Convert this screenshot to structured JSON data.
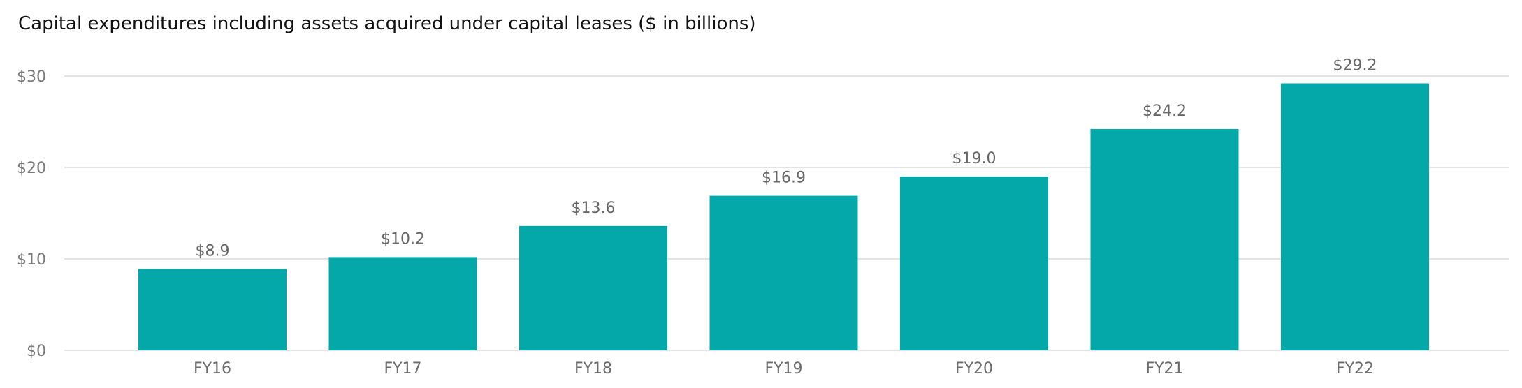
{
  "chart_data": {
    "type": "bar",
    "title": "Capital expenditures including assets acquired under capital leases ($ in billions)",
    "xlabel": "",
    "ylabel": "",
    "categories": [
      "FY16",
      "FY17",
      "FY18",
      "FY19",
      "FY20",
      "FY21",
      "FY22"
    ],
    "values": [
      8.9,
      10.2,
      13.6,
      16.9,
      19.0,
      24.2,
      29.2
    ],
    "data_labels": [
      "$8.9",
      "$10.2",
      "$13.6",
      "$16.9",
      "$19.0",
      "$24.2",
      "$29.2"
    ],
    "ylim": [
      0,
      30
    ],
    "yticks": [
      0,
      10,
      20,
      30
    ],
    "ytick_labels": [
      "$0",
      "$10",
      "$20",
      "$30"
    ],
    "grid": true,
    "legend": "none",
    "bar_color": "#05A8A9",
    "grid_color": "#e3e3e3"
  }
}
